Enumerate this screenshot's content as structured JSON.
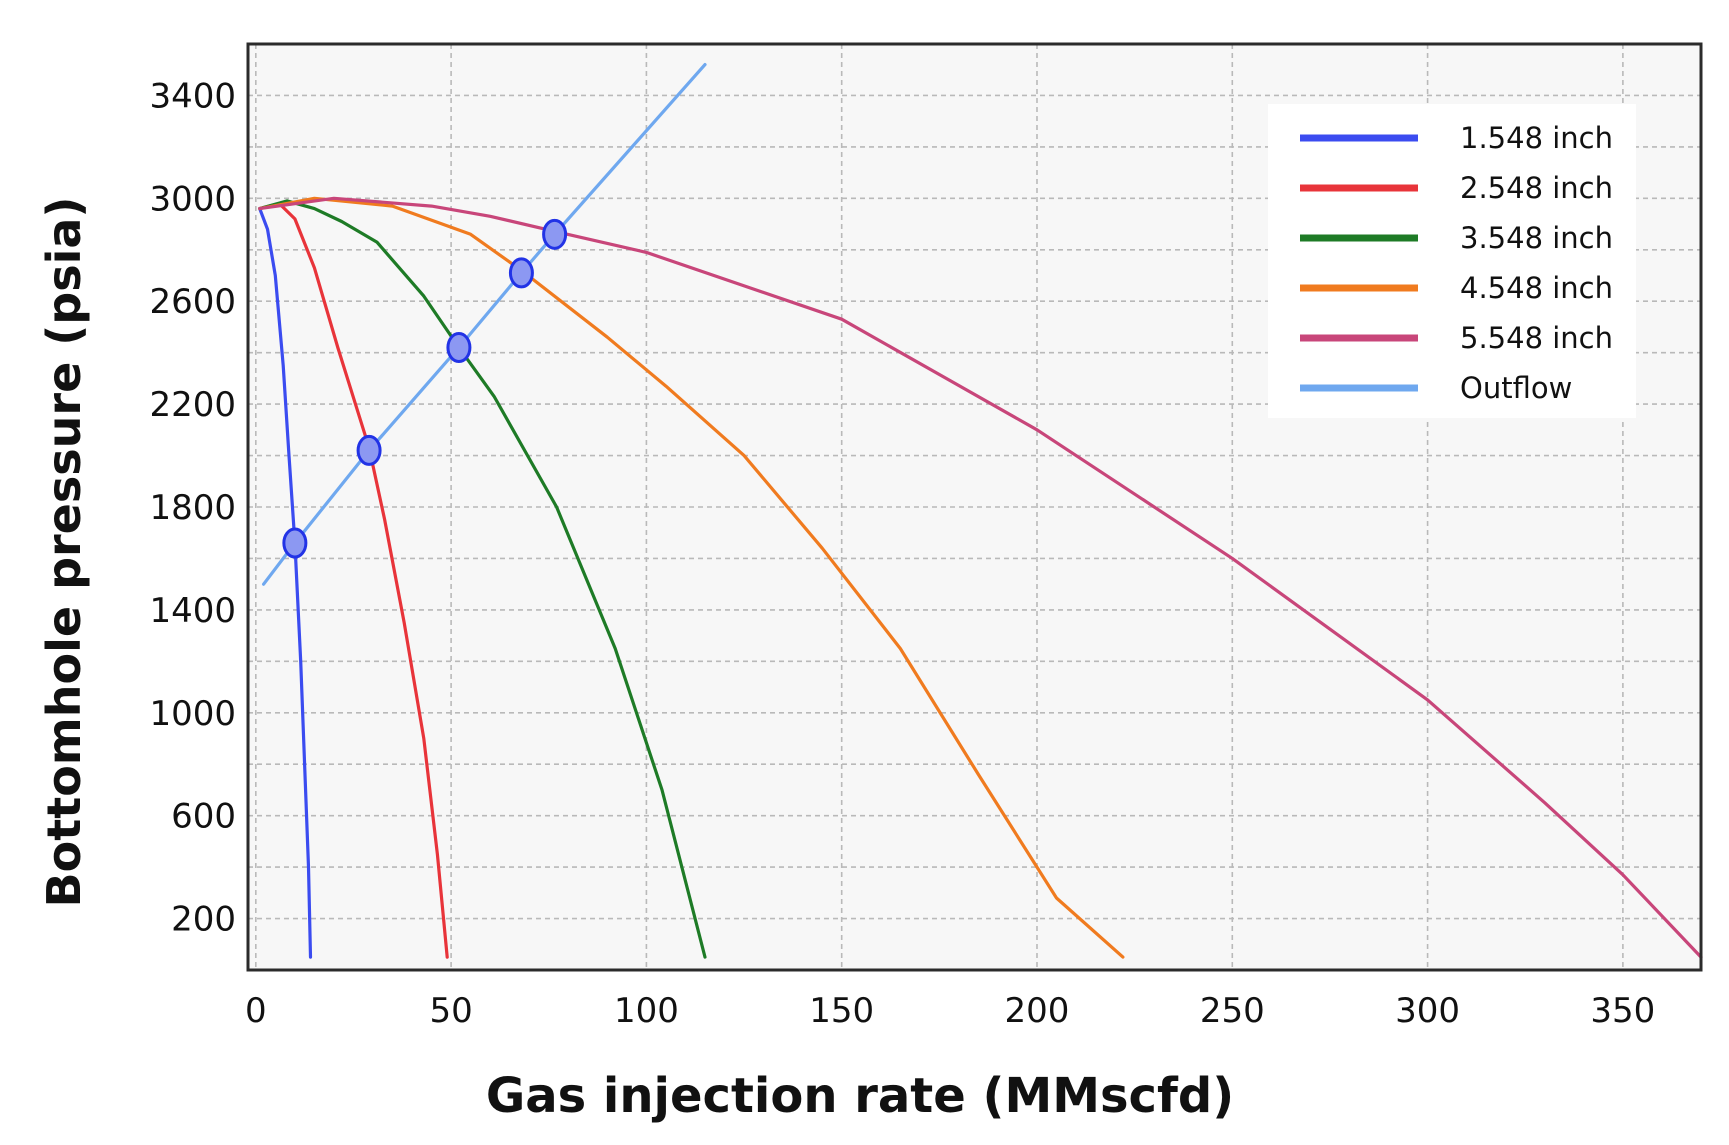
{
  "chart_data": {
    "type": "line",
    "title": "",
    "xlabel": "Gas injection rate (MMscfd)",
    "ylabel": "Bottomhole pressure (psia)",
    "xlim": [
      -2,
      370
    ],
    "ylim": [
      0,
      3600
    ],
    "xticks": [
      0,
      50,
      100,
      150,
      200,
      250,
      300,
      350
    ],
    "yticks": [
      200,
      600,
      1000,
      1400,
      1800,
      2200,
      2600,
      3000,
      3400
    ],
    "grid": true,
    "legend_position": "top-right",
    "series": [
      {
        "name": "1.548 inch",
        "color": "#3b4cf0",
        "x": [
          1,
          3,
          5,
          7,
          8.5,
          10,
          11.5,
          12.5,
          13.5,
          14
        ],
        "y": [
          2960,
          2880,
          2700,
          2350,
          2000,
          1660,
          1200,
          800,
          400,
          50
        ]
      },
      {
        "name": "2.548 inch",
        "color": "#e8343a",
        "x": [
          1,
          6,
          10,
          15,
          21,
          29,
          33,
          38,
          43,
          46.5,
          49
        ],
        "y": [
          2960,
          2980,
          2920,
          2730,
          2420,
          2030,
          1750,
          1350,
          900,
          450,
          50
        ]
      },
      {
        "name": "3.548 inch",
        "color": "#1e7b26",
        "x": [
          1,
          8,
          15,
          22,
          31,
          43,
          52,
          61,
          77,
          92,
          104,
          115
        ],
        "y": [
          2960,
          2990,
          2960,
          2910,
          2830,
          2620,
          2420,
          2230,
          1800,
          1250,
          700,
          50
        ]
      },
      {
        "name": "4.548 inch",
        "color": "#f07b1f",
        "x": [
          1,
          15,
          35,
          55,
          68,
          90,
          105,
          125,
          145,
          165,
          185,
          205,
          222
        ],
        "y": [
          2960,
          3000,
          2970,
          2860,
          2720,
          2460,
          2270,
          2000,
          1640,
          1250,
          760,
          280,
          50
        ]
      },
      {
        "name": "5.548 inch",
        "color": "#c8467a",
        "x": [
          1,
          20,
          45,
          60,
          77,
          100,
          150,
          200,
          250,
          300,
          330,
          350,
          370
        ],
        "y": [
          2960,
          3000,
          2970,
          2930,
          2870,
          2790,
          2530,
          2100,
          1600,
          1050,
          650,
          370,
          50
        ]
      },
      {
        "name": "Outflow",
        "color": "#6fa8ef",
        "x": [
          2,
          10,
          29,
          52,
          68,
          76.5,
          115
        ],
        "y": [
          1500,
          1660,
          2020,
          2420,
          2710,
          2860,
          3520
        ]
      }
    ],
    "operating_points": {
      "x": [
        10,
        29,
        52,
        68,
        76.5
      ],
      "y": [
        1660,
        2020,
        2420,
        2710,
        2860
      ]
    }
  }
}
